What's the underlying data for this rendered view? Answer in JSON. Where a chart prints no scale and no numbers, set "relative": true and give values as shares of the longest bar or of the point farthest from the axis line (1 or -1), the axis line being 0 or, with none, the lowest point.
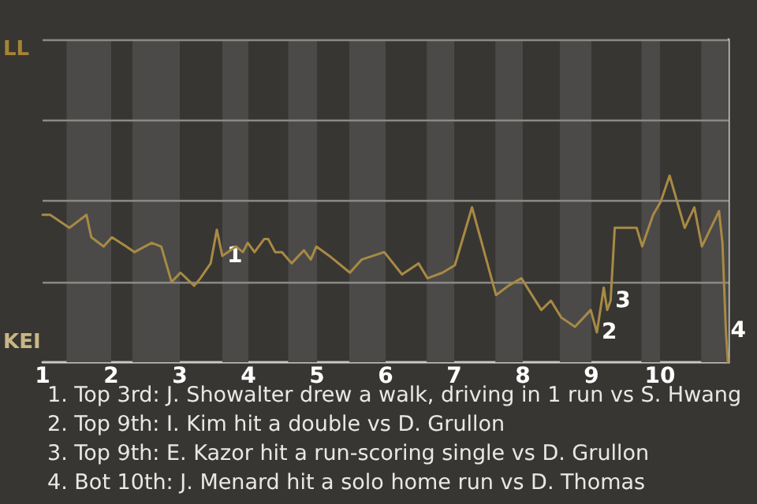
{
  "chart_data": {
    "type": "line",
    "x": [
      1,
      1.11,
      1.39,
      1.64,
      1.71,
      1.89,
      2.01,
      2.22,
      2.34,
      2.59,
      2.73,
      2.88,
      3.01,
      3.21,
      3.3,
      3.45,
      3.54,
      3.62,
      3.82,
      3.92,
      3.99,
      4.09,
      4.23,
      4.29,
      4.39,
      4.49,
      4.63,
      4.81,
      4.91,
      4.99,
      5.18,
      5.48,
      5.65,
      5.98,
      6.24,
      6.48,
      6.61,
      6.83,
      7.01,
      7.26,
      7.61,
      7.79,
      7.98,
      8.27,
      8.41,
      8.56,
      8.76,
      8.99,
      9.08,
      9.18,
      9.23,
      9.28,
      9.34,
      9.66,
      9.74,
      9.9,
      10.01,
      10.14,
      10.36,
      10.5,
      10.61,
      10.86,
      10.91,
      10.96,
      10.99
    ],
    "series": [
      {
        "color": "#a88a45",
        "values": [
          0.79,
          0.79,
          0.72,
          0.79,
          0.67,
          0.62,
          0.67,
          0.62,
          0.59,
          0.64,
          0.62,
          0.43,
          0.48,
          0.41,
          0.45,
          0.53,
          0.71,
          0.57,
          0.62,
          0.59,
          0.64,
          0.59,
          0.66,
          0.66,
          0.59,
          0.59,
          0.53,
          0.6,
          0.55,
          0.62,
          0.57,
          0.48,
          0.55,
          0.59,
          0.47,
          0.53,
          0.45,
          0.48,
          0.52,
          0.83,
          0.36,
          0.41,
          0.45,
          0.28,
          0.33,
          0.24,
          0.19,
          0.28,
          0.16,
          0.4,
          0.28,
          0.33,
          0.72,
          0.72,
          0.62,
          0.79,
          0.86,
          1,
          0.72,
          0.83,
          0.62,
          0.81,
          0.64,
          0.17,
          0
        ]
      }
    ],
    "relative": true,
    "xlim": [
      1,
      11
    ],
    "xticks": [
      1,
      2,
      3,
      4,
      5,
      6,
      7,
      8,
      9,
      10
    ],
    "ref_lines": [
      {
        "axis": "y",
        "value": 0.43,
        "color": "#8a8a86",
        "line_style": "solid"
      },
      {
        "axis": "y",
        "value": 0.87,
        "color": "#8a8a86",
        "line_style": "solid"
      },
      {
        "axis": "y",
        "value": 1.3,
        "color": "#8a8a86",
        "line_style": "solid"
      },
      {
        "axis": "y",
        "value": 1.73,
        "color": "#8a8a86",
        "line_style": "solid"
      }
    ],
    "marker": "none",
    "line_style": "solid",
    "bands": [
      {
        "axis": "x",
        "from": 1.35,
        "to": 2,
        "color": "#4b4a48"
      },
      {
        "axis": "x",
        "from": 2.31,
        "to": 3,
        "color": "#4b4a48"
      },
      {
        "axis": "x",
        "from": 3.62,
        "to": 4,
        "color": "#4b4a48"
      },
      {
        "axis": "x",
        "from": 4.58,
        "to": 5,
        "color": "#4b4a48"
      },
      {
        "axis": "x",
        "from": 5.47,
        "to": 6,
        "color": "#4b4a48"
      },
      {
        "axis": "x",
        "from": 6.6,
        "to": 7,
        "color": "#4b4a48"
      },
      {
        "axis": "x",
        "from": 7.6,
        "to": 8,
        "color": "#4b4a48"
      },
      {
        "axis": "x",
        "from": 8.54,
        "to": 9,
        "color": "#4b4a48"
      },
      {
        "axis": "x",
        "from": 9.73,
        "to": 10,
        "color": "#4b4a48"
      },
      {
        "axis": "x",
        "from": 10.6,
        "to": 11,
        "color": "#4b4a48"
      }
    ],
    "annotations": [
      "LL",
      "KEI",
      {
        "text": "1",
        "x": 3.62,
        "y": 0.57
      },
      {
        "text": "2",
        "x": 9.08,
        "y": 0.16
      },
      {
        "text": "3",
        "x": 9.28,
        "y": 0.33
      },
      {
        "text": "4",
        "x": 10.96,
        "y": 0.17
      },
      "1. Top 3rd: J. Showalter drew a walk, driving in 1 run vs S. Hwang",
      "2. Top 9th: I. Kim hit a double vs D. Grullon",
      "3. Top 9th: E. Kazor hit a run-scoring single vs D. Grullon",
      "4. Bot 10th: J. Menard hit a solo home run vs D. Thomas"
    ]
  }
}
